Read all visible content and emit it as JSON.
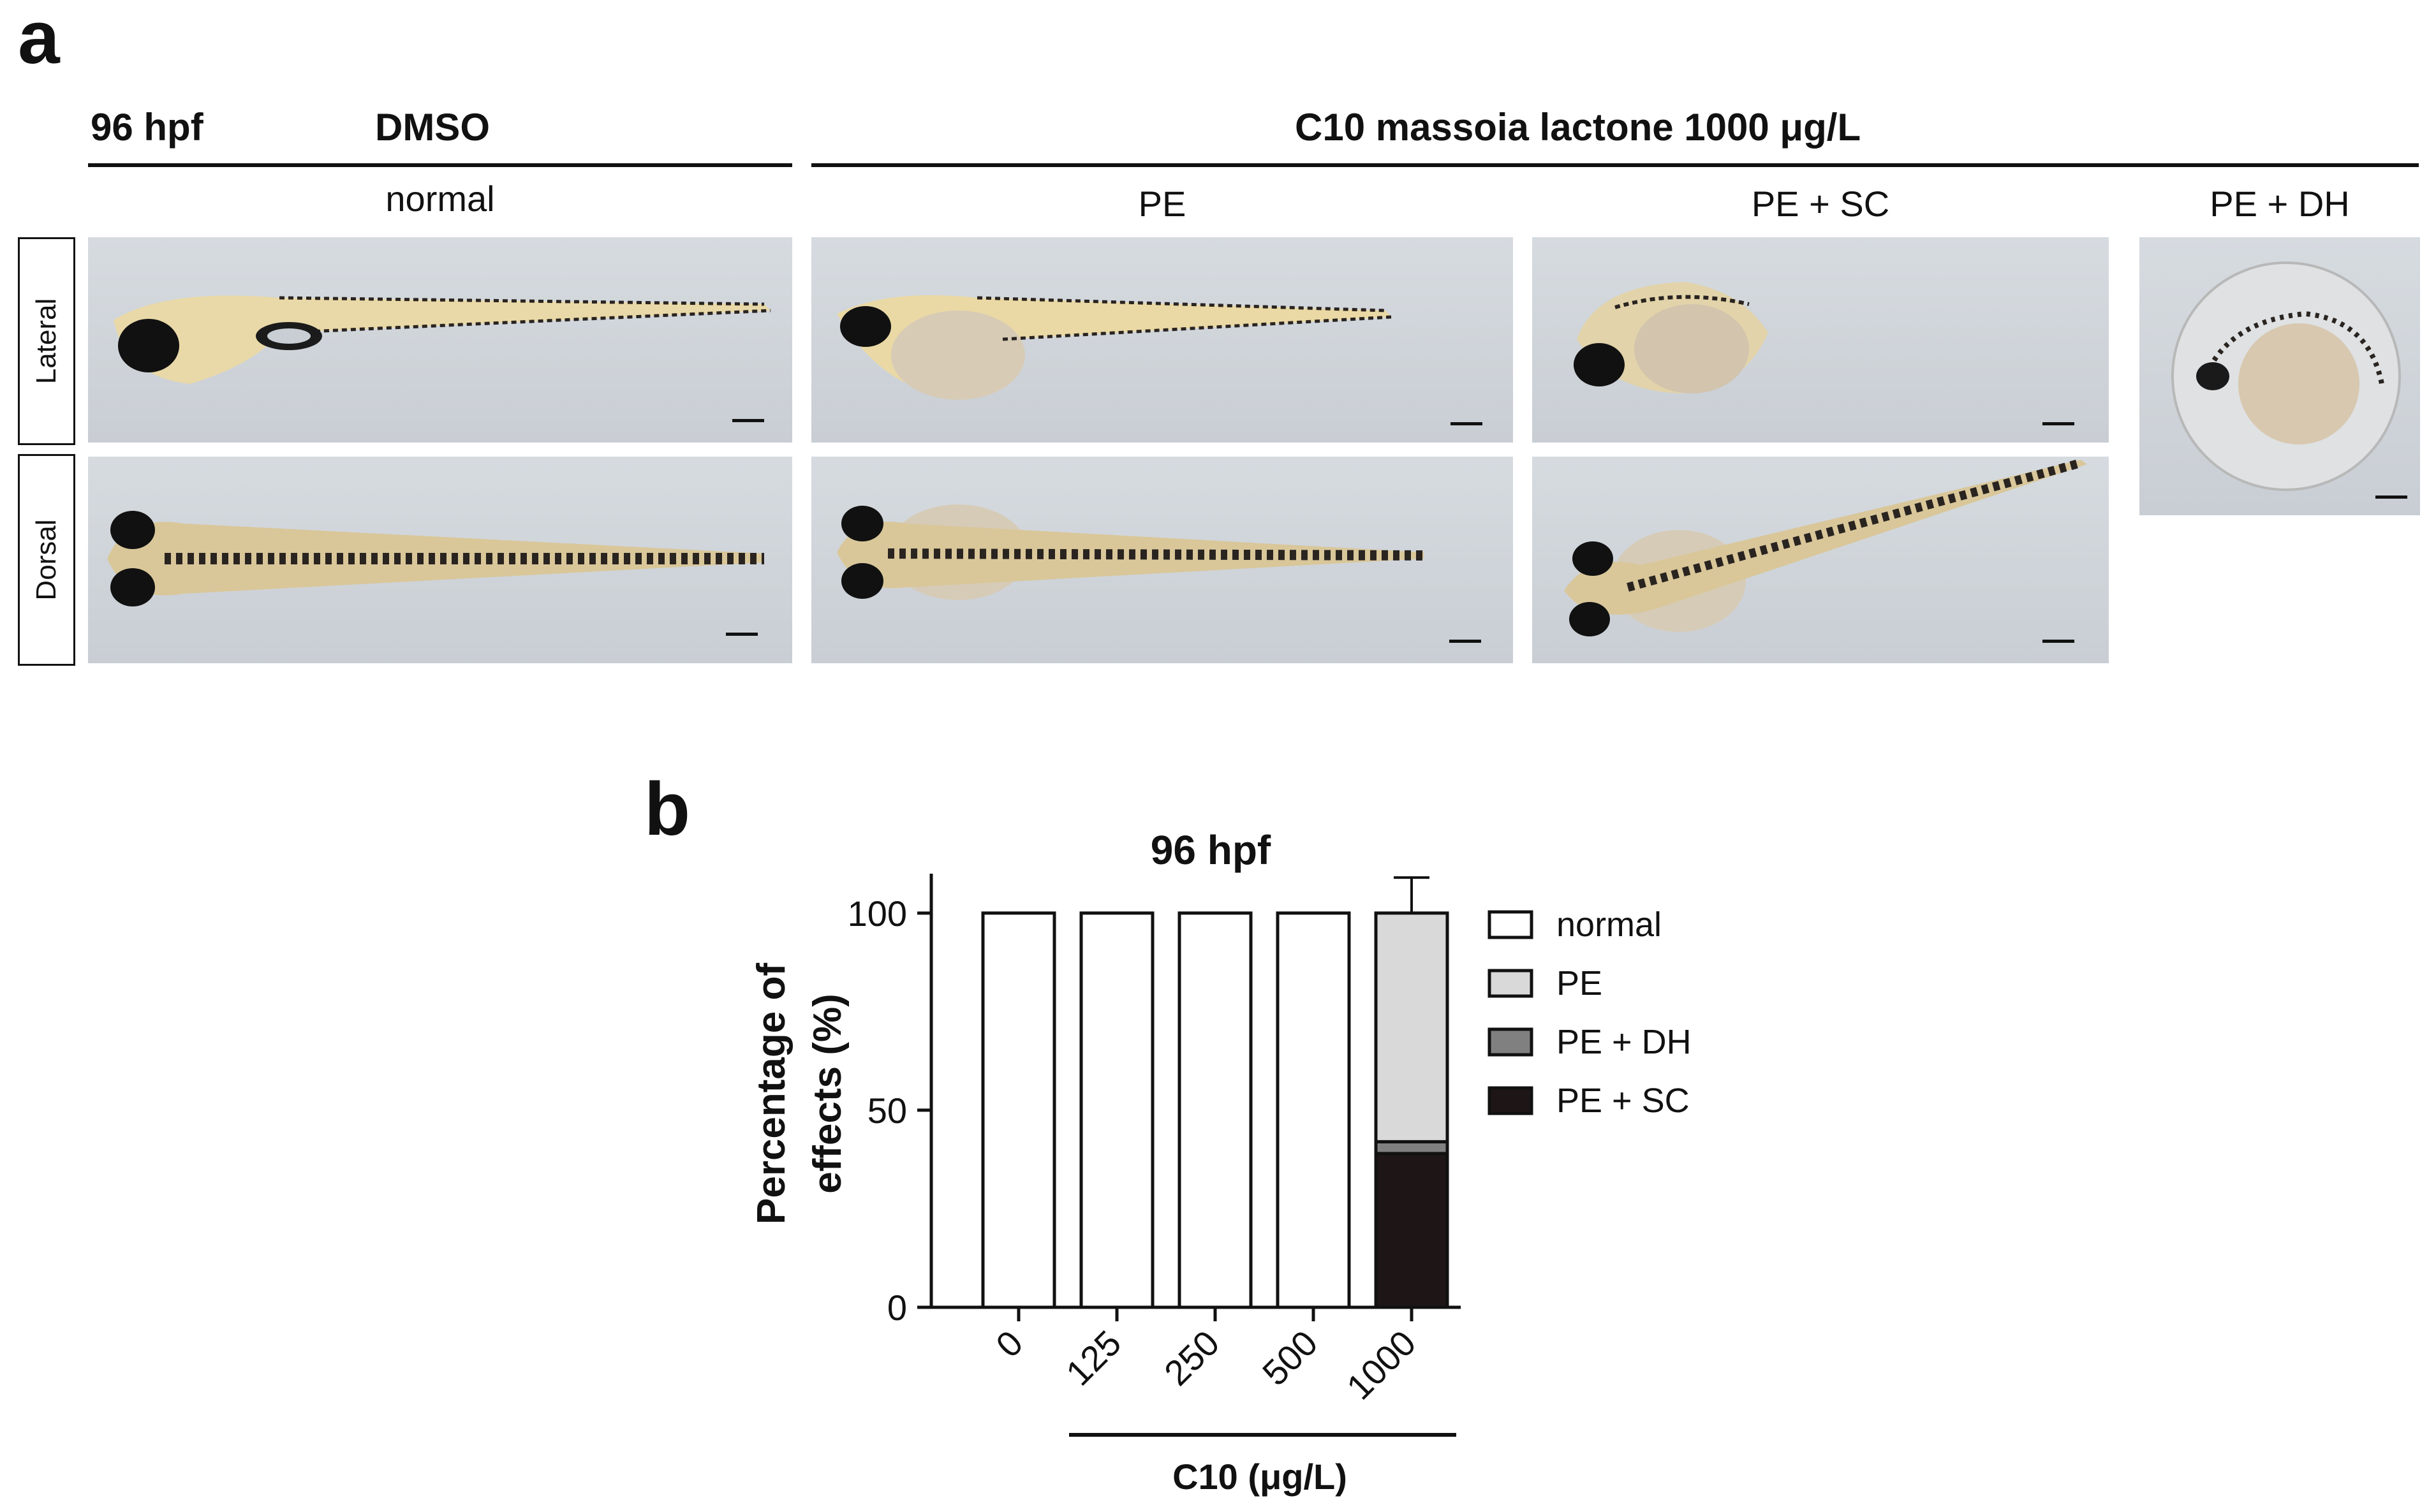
{
  "figure": {
    "panel_a_letter": "a",
    "panel_b_letter": "b",
    "time_label": "96 hpf",
    "control_group": "DMSO",
    "treatment_group": "C10 massoia lactone  1000 μg/L",
    "columns": [
      "normal",
      "PE",
      "PE + SC",
      "PE + DH"
    ],
    "rows": [
      "Lateral",
      "Dorsal"
    ]
  },
  "chart_data": {
    "type": "bar",
    "stacked": true,
    "title": "96 hpf",
    "xlabel": "C10 (μg/L)",
    "ylabel": "Percentage of effects (%)",
    "ylim": [
      0,
      110
    ],
    "yticks": [
      0,
      50,
      100
    ],
    "categories": [
      "0",
      "125",
      "250",
      "500",
      "1000"
    ],
    "series": [
      {
        "name": "PE + SC",
        "values": [
          0,
          0,
          0,
          0,
          39
        ],
        "color": "#1e1616",
        "error": [
          0,
          0,
          0,
          0,
          3
        ]
      },
      {
        "name": "PE + DH",
        "values": [
          0,
          0,
          0,
          0,
          3
        ],
        "color": "#808080",
        "error": [
          0,
          0,
          0,
          0,
          2
        ]
      },
      {
        "name": "PE",
        "values": [
          0,
          0,
          0,
          0,
          58
        ],
        "color": "#d9d9d9",
        "error": [
          0,
          0,
          0,
          0,
          9
        ]
      },
      {
        "name": "normal",
        "values": [
          100,
          100,
          100,
          100,
          0
        ],
        "color": "#ffffff",
        "error": [
          0,
          0,
          0,
          0,
          0
        ]
      }
    ],
    "legend": [
      "normal",
      "PE",
      "PE + DH",
      "PE + SC"
    ],
    "legend_position": "right"
  }
}
